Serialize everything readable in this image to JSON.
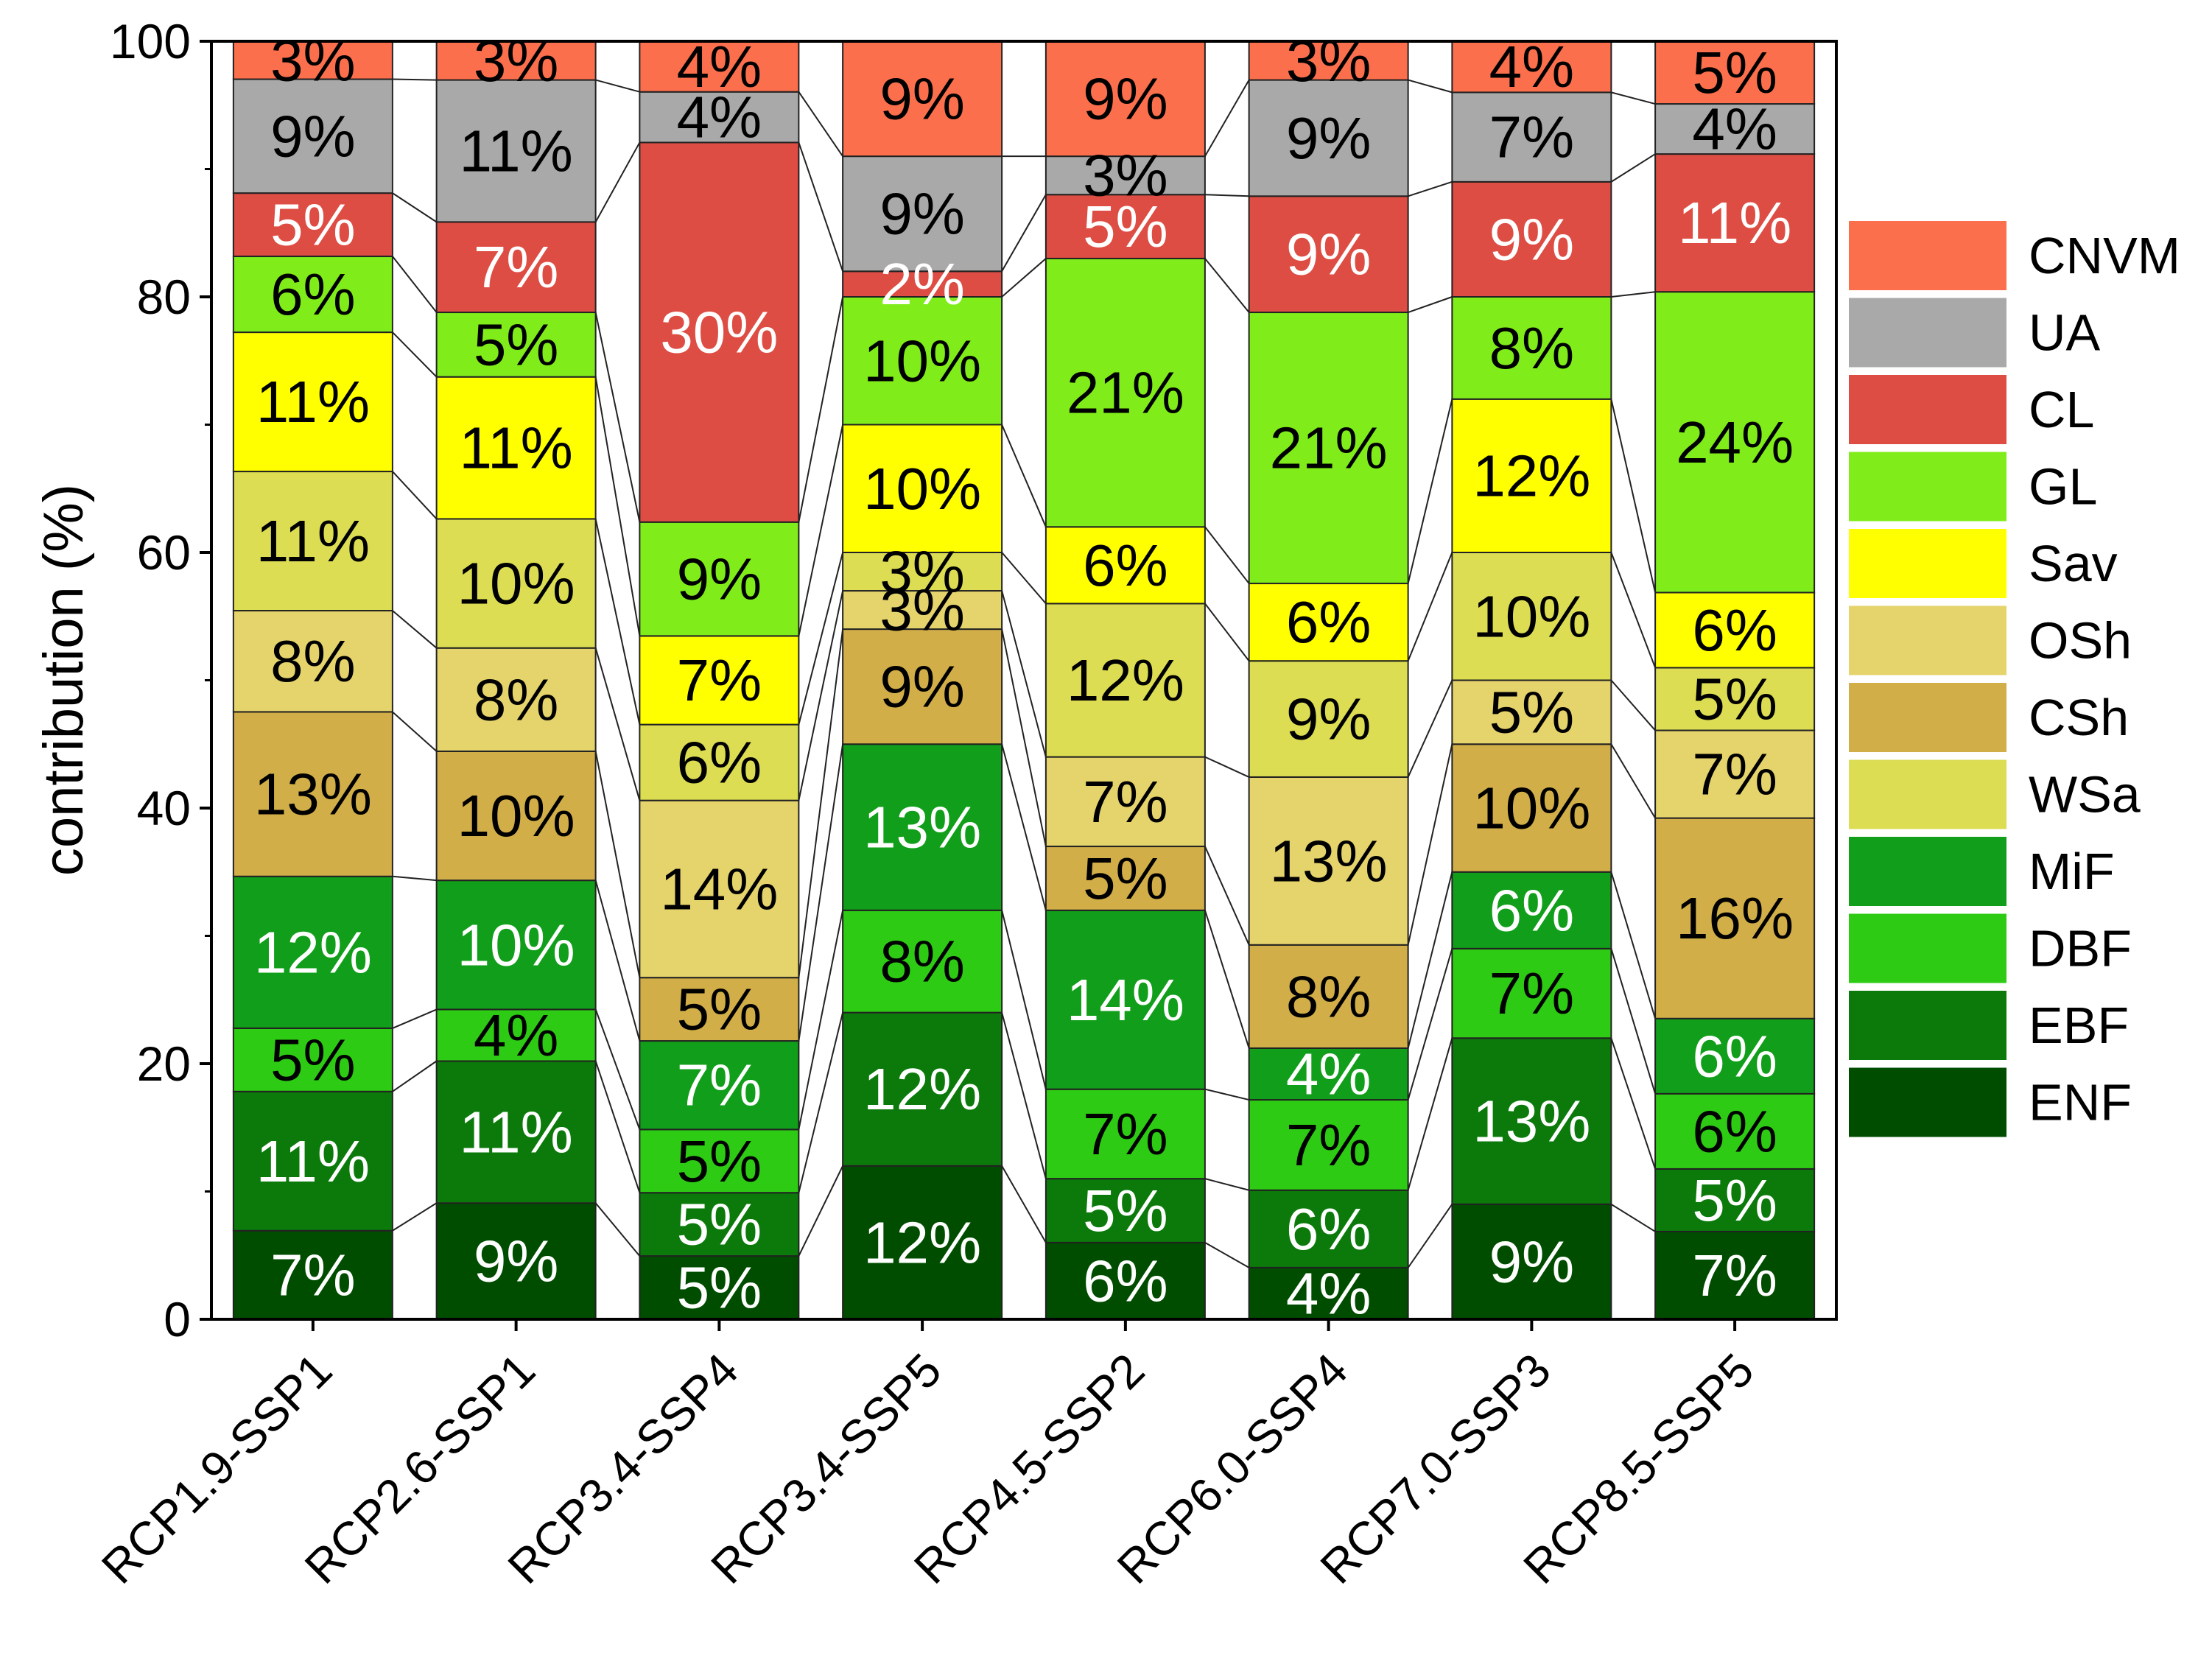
{
  "chart_data": {
    "type": "bar",
    "stacked": true,
    "title": "",
    "xlabel": "",
    "ylabel": "contribution (%)",
    "ylim": [
      0,
      100
    ],
    "yticks": [
      "0",
      "20",
      "40",
      "60",
      "80",
      "100"
    ],
    "legend_position": "right",
    "categories": [
      "RCP1.9-SSP1",
      "RCP2.6-SSP1",
      "RCP3.4-SSP4",
      "RCP3.4-SSP5",
      "RCP4.5-SSP2",
      "RCP6.0-SSP4",
      "RCP7.0-SSP3",
      "RCP8.5-SSP5"
    ],
    "series": [
      {
        "name": "ENF",
        "color": "#004d00",
        "text_color": "#ffffff",
        "values": [
          7,
          9,
          5,
          12,
          6,
          4,
          9,
          7
        ],
        "labels": [
          "7%",
          "9%",
          "5%",
          "12%",
          "6%",
          "4%",
          "9%",
          "7%"
        ]
      },
      {
        "name": "EBF",
        "color": "#0b7a0b",
        "text_color": "#ffffff",
        "values": [
          11,
          11,
          5,
          12,
          5,
          6,
          13,
          5
        ],
        "labels": [
          "11%",
          "11%",
          "5%",
          "12%",
          "5%",
          "6%",
          "13%",
          "5%"
        ]
      },
      {
        "name": "DBF",
        "color": "#2ecb14",
        "text_color": "#000000",
        "values": [
          5,
          4,
          5,
          8,
          7,
          7,
          7,
          6
        ],
        "labels": [
          "5%",
          "4%",
          "5%",
          "8%",
          "7%",
          "7%",
          "7%",
          "6%"
        ]
      },
      {
        "name": "MiF",
        "color": "#119e1a",
        "text_color": "#ffffff",
        "values": [
          12,
          10,
          7,
          13,
          14,
          4,
          6,
          6
        ],
        "labels": [
          "12%",
          "10%",
          "7%",
          "13%",
          "14%",
          "4%",
          "6%",
          "6%"
        ]
      },
      {
        "name": "CSh",
        "color": "#d1ae48",
        "text_color": "#000000",
        "values": [
          13,
          10,
          5,
          9,
          5,
          8,
          10,
          16
        ],
        "labels": [
          "13%",
          "10%",
          "5%",
          "9%",
          "5%",
          "8%",
          "10%",
          "16%"
        ]
      },
      {
        "name": "OSh",
        "color": "#e5d36c",
        "text_color": "#000000",
        "values": [
          8,
          8,
          14,
          3,
          7,
          13,
          5,
          7
        ],
        "labels": [
          "8%",
          "8%",
          "14%",
          "3%",
          "7%",
          "13%",
          "5%",
          "7%"
        ]
      },
      {
        "name": "WSa",
        "color": "#dcdd52",
        "text_color": "#000000",
        "values": [
          11,
          10,
          6,
          3,
          12,
          9,
          10,
          5
        ],
        "labels": [
          "11%",
          "10%",
          "6%",
          "3%",
          "12%",
          "9%",
          "10%",
          "5%"
        ]
      },
      {
        "name": "Sav",
        "color": "#ffff00",
        "text_color": "#000000",
        "values": [
          11,
          11,
          7,
          10,
          6,
          6,
          12,
          6
        ],
        "labels": [
          "11%",
          "11%",
          "7%",
          "10%",
          "6%",
          "6%",
          "12%",
          "6%"
        ]
      },
      {
        "name": "GL",
        "color": "#80ed1a",
        "text_color": "#000000",
        "values": [
          6,
          5,
          9,
          10,
          21,
          21,
          8,
          24
        ],
        "labels": [
          "6%",
          "5%",
          "9%",
          "10%",
          "21%",
          "21%",
          "8%",
          "24%"
        ]
      },
      {
        "name": "CL",
        "color": "#dd4d43",
        "text_color": "#ffffff",
        "values": [
          5,
          7,
          30,
          2,
          5,
          9,
          9,
          11
        ],
        "labels": [
          "5%",
          "7%",
          "30%",
          "2%",
          "5%",
          "9%",
          "9%",
          "11%"
        ]
      },
      {
        "name": "UA",
        "color": "#a9a9a9",
        "text_color": "#000000",
        "values": [
          9,
          11,
          4,
          9,
          3,
          9,
          7,
          4
        ],
        "labels": [
          "9%",
          "11%",
          "4%",
          "9%",
          "3%",
          "9%",
          "7%",
          "4%"
        ]
      },
      {
        "name": "CNVM",
        "color": "#fc6f4d",
        "text_color": "#000000",
        "values": [
          3,
          3,
          4,
          9,
          9,
          3,
          4,
          5
        ],
        "labels": [
          "3%",
          "3%",
          "4%",
          "9%",
          "9%",
          "3%",
          "4%",
          "5%"
        ]
      }
    ],
    "legend_order": [
      "CNVM",
      "UA",
      "CL",
      "GL",
      "Sav",
      "OSh",
      "CSh",
      "WSa",
      "MiF",
      "DBF",
      "EBF",
      "ENF"
    ]
  }
}
